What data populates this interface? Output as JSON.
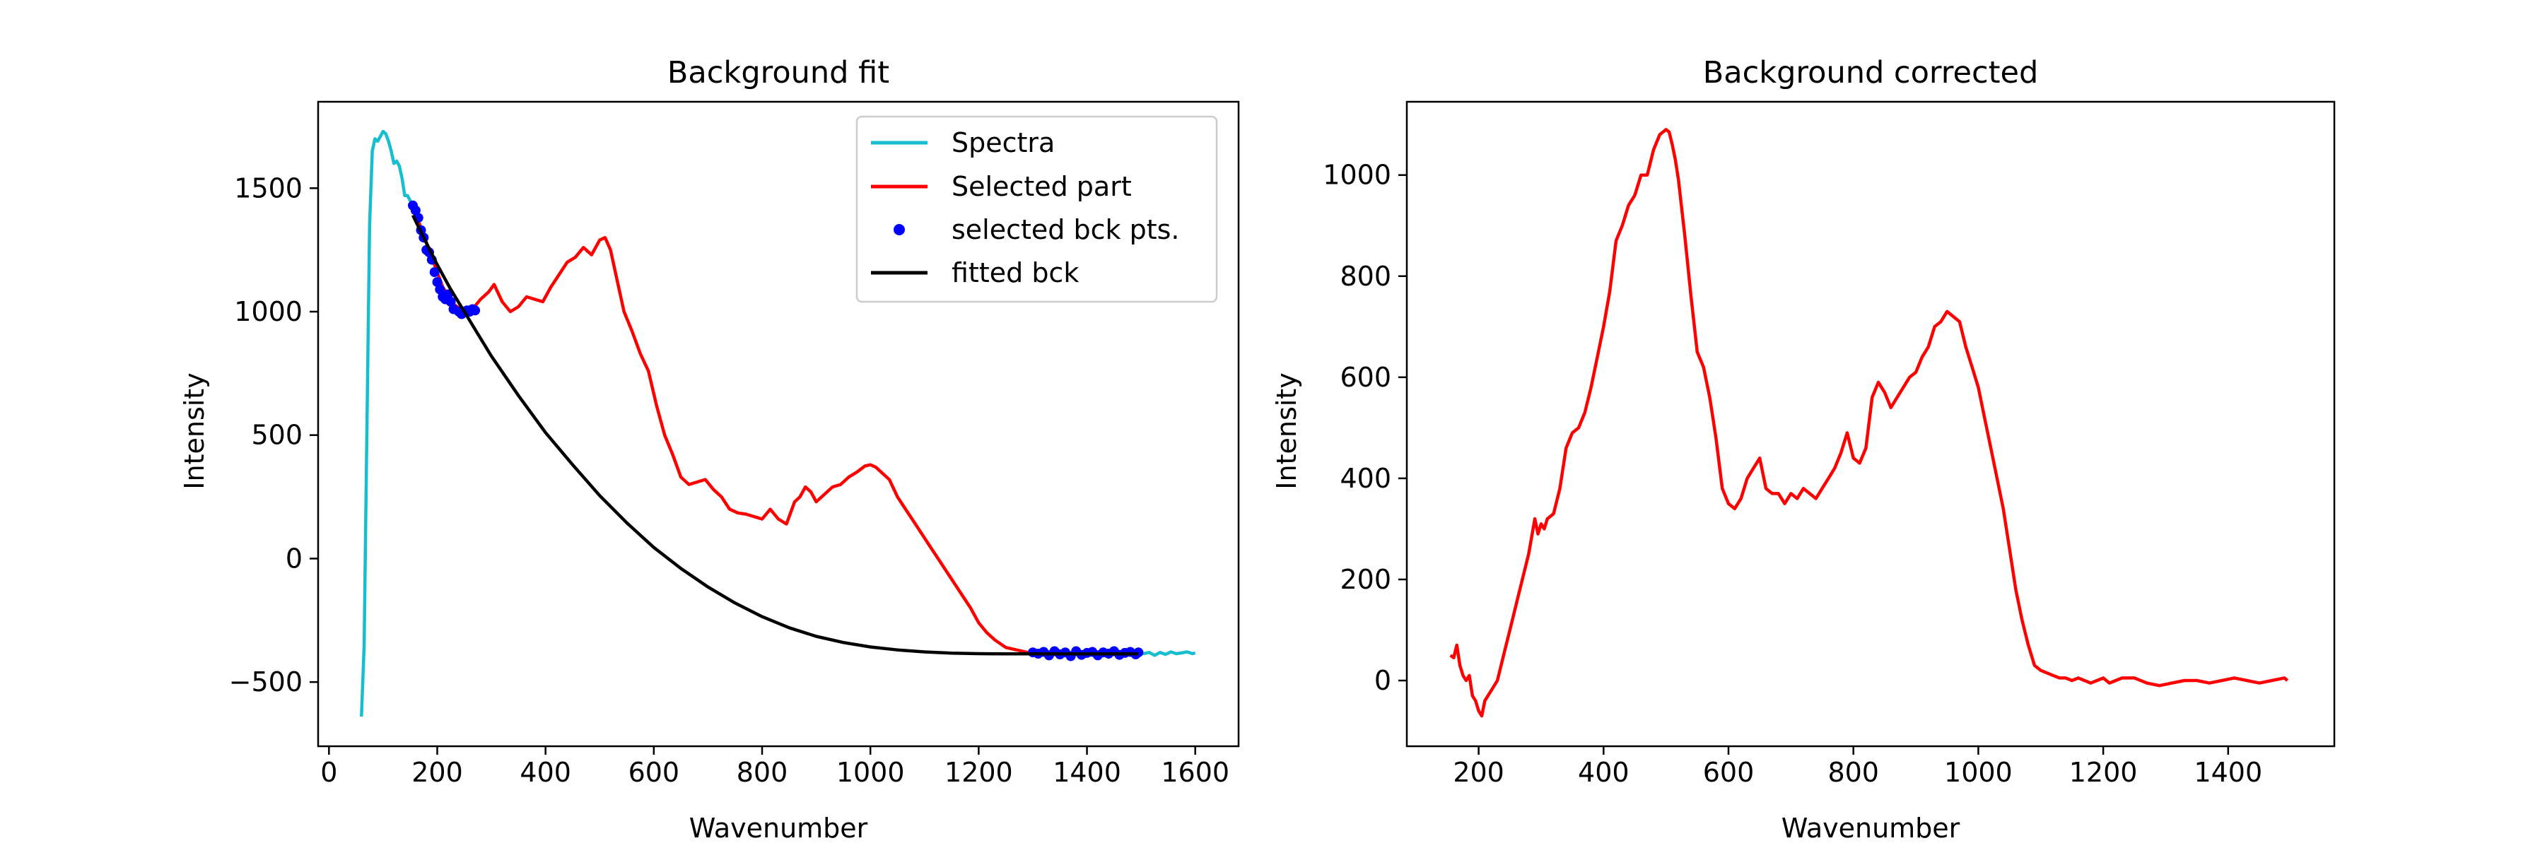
{
  "colors": {
    "spectra": "#17becf",
    "selected_part": "#ff0000",
    "selected_points": "#0000ff",
    "fitted": "#000000"
  },
  "chart_data": [
    {
      "type": "line",
      "title": "Background fit",
      "xlabel": "Wavenumber",
      "ylabel": "Intensity",
      "xlim": [
        -20,
        1680
      ],
      "ylim": [
        -760,
        1850
      ],
      "xticks": [
        0,
        200,
        400,
        600,
        800,
        1000,
        1200,
        1400,
        1600
      ],
      "yticks": [
        -500,
        0,
        500,
        1000,
        1500
      ],
      "xtick_labels": [
        "0",
        "200",
        "400",
        "600",
        "800",
        "1000",
        "1200",
        "1400",
        "1600"
      ],
      "ytick_labels": [
        "−500",
        "0",
        "500",
        "1000",
        "1500"
      ],
      "grid": false,
      "legend_position": "top-right",
      "legend": [
        "Spectra",
        "Selected part",
        "selected bck pts.",
        "fitted bck"
      ],
      "series": [
        {
          "name": "Spectra",
          "type": "line",
          "x": [
            60,
            65,
            70,
            75,
            80,
            85,
            90,
            95,
            100,
            105,
            110,
            115,
            120,
            125,
            130,
            135,
            140,
            145,
            150,
            155,
            1495,
            1505,
            1515,
            1525,
            1535,
            1545,
            1555,
            1565,
            1575,
            1585,
            1595,
            1600
          ],
          "y": [
            -640,
            -350,
            500,
            1350,
            1650,
            1700,
            1690,
            1710,
            1730,
            1720,
            1690,
            1650,
            1600,
            1610,
            1590,
            1540,
            1470,
            1470,
            1450,
            1420,
            -375,
            -385,
            -380,
            -392,
            -380,
            -388,
            -378,
            -385,
            -382,
            -378,
            -385,
            -382
          ]
        },
        {
          "name": "Selected part",
          "type": "line",
          "x": [
            155,
            170,
            190,
            210,
            230,
            250,
            265,
            280,
            295,
            305,
            320,
            335,
            350,
            365,
            380,
            395,
            410,
            425,
            440,
            455,
            470,
            485,
            500,
            510,
            520,
            530,
            545,
            560,
            575,
            590,
            605,
            620,
            635,
            650,
            665,
            680,
            695,
            710,
            725,
            740,
            755,
            770,
            785,
            800,
            815,
            830,
            845,
            860,
            870,
            880,
            890,
            900,
            915,
            930,
            945,
            960,
            975,
            990,
            1000,
            1010,
            1020,
            1035,
            1050,
            1065,
            1080,
            1095,
            1110,
            1125,
            1140,
            1155,
            1170,
            1185,
            1200,
            1215,
            1230,
            1250,
            1270,
            1290,
            1310,
            1350,
            1400,
            1450,
            1495
          ],
          "y": [
            1420,
            1340,
            1220,
            1100,
            1030,
            1000,
            1010,
            1050,
            1080,
            1110,
            1040,
            1000,
            1020,
            1060,
            1050,
            1040,
            1100,
            1150,
            1200,
            1220,
            1260,
            1230,
            1290,
            1300,
            1250,
            1150,
            1000,
            920,
            830,
            760,
            620,
            500,
            420,
            330,
            300,
            310,
            320,
            280,
            250,
            200,
            185,
            180,
            170,
            160,
            200,
            160,
            140,
            230,
            250,
            290,
            270,
            230,
            260,
            290,
            300,
            330,
            350,
            375,
            380,
            370,
            350,
            320,
            250,
            200,
            150,
            100,
            50,
            0,
            -50,
            -100,
            -150,
            -200,
            -260,
            -300,
            -330,
            -360,
            -370,
            -380,
            -382,
            -385,
            -388,
            -385,
            -385
          ]
        },
        {
          "name": "selected bck pts.",
          "type": "scatter",
          "x": [
            155,
            160,
            165,
            170,
            175,
            180,
            185,
            190,
            195,
            200,
            205,
            210,
            215,
            220,
            225,
            230,
            240,
            245,
            250,
            255,
            260,
            265,
            270,
            1300,
            1310,
            1320,
            1330,
            1340,
            1350,
            1360,
            1370,
            1380,
            1390,
            1400,
            1410,
            1420,
            1430,
            1440,
            1450,
            1460,
            1470,
            1480,
            1490,
            1495
          ],
          "y": [
            1430,
            1410,
            1380,
            1330,
            1300,
            1250,
            1240,
            1210,
            1160,
            1120,
            1090,
            1060,
            1050,
            1070,
            1040,
            1010,
            1000,
            990,
            1000,
            1005,
            1000,
            1010,
            1005,
            -380,
            -385,
            -378,
            -392,
            -375,
            -388,
            -380,
            -395,
            -375,
            -390,
            -382,
            -378,
            -392,
            -380,
            -385,
            -375,
            -390,
            -382,
            -378,
            -388,
            -380
          ]
        },
        {
          "name": "fitted bck",
          "type": "line",
          "x": [
            155,
            175,
            200,
            225,
            250,
            275,
            300,
            350,
            400,
            450,
            500,
            550,
            600,
            650,
            700,
            750,
            800,
            850,
            900,
            950,
            1000,
            1050,
            1100,
            1150,
            1200,
            1250,
            1300,
            1350,
            1400,
            1450,
            1495
          ],
          "y": [
            1390,
            1300,
            1190,
            1090,
            1000,
            910,
            820,
            660,
            510,
            380,
            255,
            145,
            45,
            -40,
            -115,
            -180,
            -235,
            -280,
            -315,
            -340,
            -358,
            -370,
            -378,
            -383,
            -385,
            -386,
            -386,
            -386,
            -386,
            -386,
            -386
          ]
        }
      ]
    },
    {
      "type": "line",
      "title": "Background corrected",
      "xlabel": "Wavenumber",
      "ylabel": "Intensity",
      "xlim": [
        85,
        1570
      ],
      "ylim": [
        -130,
        1145
      ],
      "xticks": [
        200,
        400,
        600,
        800,
        1000,
        1200,
        1400
      ],
      "yticks": [
        0,
        200,
        400,
        600,
        800,
        1000
      ],
      "xtick_labels": [
        "200",
        "400",
        "600",
        "800",
        "1000",
        "1200",
        "1400"
      ],
      "ytick_labels": [
        "0",
        "200",
        "400",
        "600",
        "800",
        "1000"
      ],
      "grid": false,
      "series": [
        {
          "type": "line",
          "x": [
            155,
            160,
            165,
            170,
            175,
            180,
            185,
            190,
            195,
            200,
            205,
            210,
            220,
            230,
            240,
            250,
            260,
            270,
            280,
            290,
            295,
            300,
            305,
            310,
            320,
            330,
            340,
            350,
            360,
            370,
            380,
            390,
            400,
            410,
            420,
            430,
            440,
            450,
            460,
            470,
            480,
            490,
            500,
            505,
            510,
            515,
            520,
            530,
            540,
            550,
            560,
            570,
            580,
            590,
            600,
            610,
            620,
            630,
            640,
            650,
            660,
            670,
            680,
            690,
            700,
            710,
            720,
            730,
            740,
            750,
            760,
            770,
            780,
            790,
            800,
            810,
            820,
            825,
            830,
            840,
            850,
            860,
            870,
            880,
            890,
            900,
            910,
            920,
            930,
            940,
            950,
            960,
            970,
            980,
            990,
            1000,
            1010,
            1020,
            1030,
            1040,
            1050,
            1060,
            1070,
            1080,
            1090,
            1100,
            1110,
            1120,
            1130,
            1140,
            1150,
            1160,
            1170,
            1180,
            1190,
            1200,
            1210,
            1220,
            1230,
            1250,
            1270,
            1290,
            1310,
            1330,
            1350,
            1370,
            1390,
            1410,
            1430,
            1450,
            1470,
            1490,
            1495
          ],
          "y": [
            50,
            45,
            70,
            30,
            10,
            0,
            10,
            -30,
            -40,
            -60,
            -70,
            -40,
            -20,
            0,
            50,
            100,
            150,
            200,
            250,
            320,
            290,
            310,
            300,
            320,
            330,
            380,
            460,
            490,
            500,
            530,
            580,
            640,
            700,
            770,
            870,
            900,
            940,
            960,
            1000,
            1000,
            1050,
            1080,
            1090,
            1085,
            1060,
            1030,
            990,
            880,
            760,
            650,
            620,
            560,
            480,
            380,
            350,
            340,
            360,
            400,
            420,
            440,
            380,
            370,
            370,
            350,
            370,
            360,
            380,
            370,
            360,
            380,
            400,
            420,
            450,
            490,
            440,
            430,
            460,
            510,
            560,
            590,
            570,
            540,
            560,
            580,
            600,
            610,
            640,
            660,
            700,
            710,
            730,
            720,
            710,
            660,
            620,
            580,
            520,
            460,
            400,
            340,
            260,
            180,
            120,
            70,
            30,
            20,
            15,
            10,
            5,
            5,
            0,
            5,
            0,
            -5,
            0,
            5,
            -5,
            0,
            5,
            5,
            -5,
            -10,
            -5,
            0,
            0,
            -5,
            0,
            5,
            0,
            -5,
            0,
            5,
            0
          ]
        }
      ]
    }
  ]
}
